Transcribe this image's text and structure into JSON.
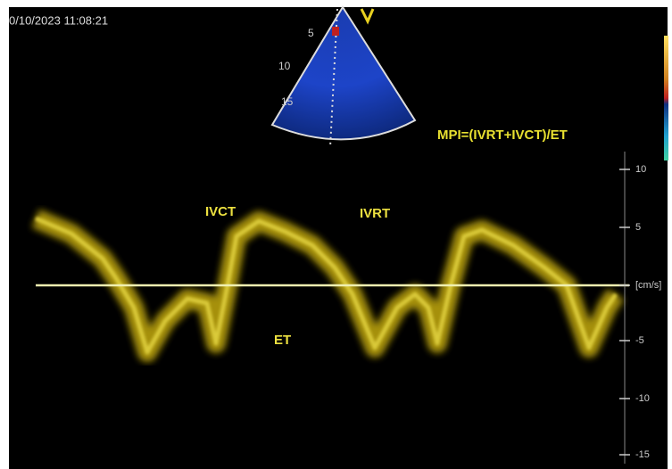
{
  "header": {
    "timestamp": "0/10/2023 11:08:21"
  },
  "sector": {
    "depth_labels": [
      "5",
      "10",
      "15"
    ]
  },
  "annotations": {
    "formula": "MPI=(IVRT+IVCT)/ET",
    "ivct": "IVCT",
    "ivrt": "IVRT",
    "et": "ET"
  },
  "scale": {
    "labels": [
      "10",
      "5",
      "[cm/s]",
      "-5",
      "-10",
      "-15"
    ]
  }
}
